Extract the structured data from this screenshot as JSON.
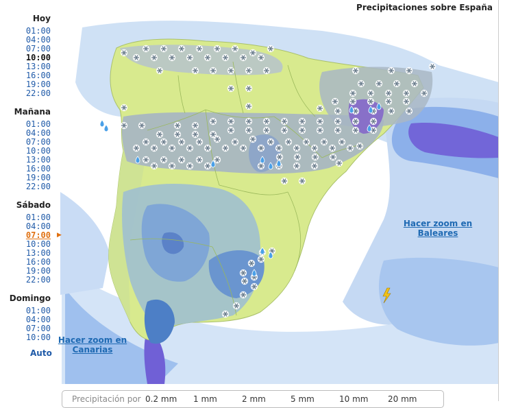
{
  "header": {
    "title": "Precipitaciones sobre España"
  },
  "sidebar": {
    "days": [
      {
        "label": "Hoy",
        "times": [
          "01:00",
          "04:00",
          "07:00",
          "10:00",
          "13:00",
          "16:00",
          "19:00",
          "22:00"
        ]
      },
      {
        "label": "Mañana",
        "times": [
          "01:00",
          "04:00",
          "07:00",
          "10:00",
          "13:00",
          "16:00",
          "19:00",
          "22:00"
        ]
      },
      {
        "label": "Sábado",
        "times": [
          "01:00",
          "04:00",
          "07:00",
          "10:00",
          "13:00",
          "16:00",
          "19:00",
          "22:00"
        ]
      },
      {
        "label": "Domingo",
        "times": [
          "01:00",
          "04:00",
          "07:00",
          "10:00"
        ]
      }
    ],
    "auto": "Auto"
  },
  "links": {
    "baleares": "Hacer zoom en Baleares",
    "canarias": "Hacer zoom en Canarias"
  },
  "legend": {
    "title": "Precipitación por",
    "levels": [
      "0.2 mm",
      "1 mm",
      "2 mm",
      "5 mm",
      "10 mm",
      "20 mm"
    ]
  },
  "colors": {
    "land": "#d8ea8e",
    "sea": "#ffffff",
    "light_rain": "#c9dcf5",
    "rain": "#8db4ea",
    "heavy_rain": "#5b7fe0",
    "very_heavy": "#7b60d8",
    "snow_area": "#9fb2c2"
  },
  "icons": {
    "snow": "snowflake-icon",
    "rain": "raindrop-icon",
    "storm": "lightning-icon"
  }
}
